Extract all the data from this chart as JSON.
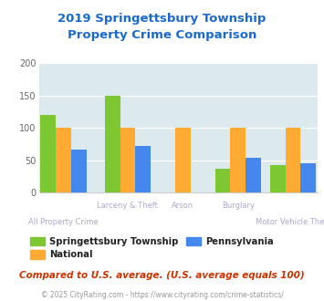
{
  "title": "2019 Springettsbury Township\nProperty Crime Comparison",
  "categories": [
    "All Property Crime",
    "Larceny & Theft",
    "Arson",
    "Burglary",
    "Motor Vehicle Theft"
  ],
  "springettsbury": [
    120,
    150,
    0,
    37,
    42
  ],
  "national": [
    100,
    100,
    100,
    100,
    100
  ],
  "pennsylvania": [
    66,
    72,
    0,
    54,
    45
  ],
  "colors": {
    "springettsbury": "#7dc832",
    "national": "#ffaa33",
    "pennsylvania": "#4488ee"
  },
  "ylim": [
    0,
    200
  ],
  "yticks": [
    0,
    50,
    100,
    150,
    200
  ],
  "bg_color": "#dce9ed",
  "title_color": "#1a6acc",
  "subtitle_color": "#cc3300",
  "footer_color": "#999999",
  "xlabel_color": "#aaaacc",
  "bar_width": 0.25,
  "cat_labels_top": [
    "",
    "Larceny & Theft",
    "Arson",
    "Burglary",
    ""
  ],
  "cat_labels_bot": [
    "All Property Crime",
    "",
    "",
    "",
    "Motor Vehicle Theft"
  ],
  "subtitle_text": "Compared to U.S. average. (U.S. average equals 100)",
  "footer_text": "© 2025 CityRating.com - https://www.cityrating.com/crime-statistics/"
}
